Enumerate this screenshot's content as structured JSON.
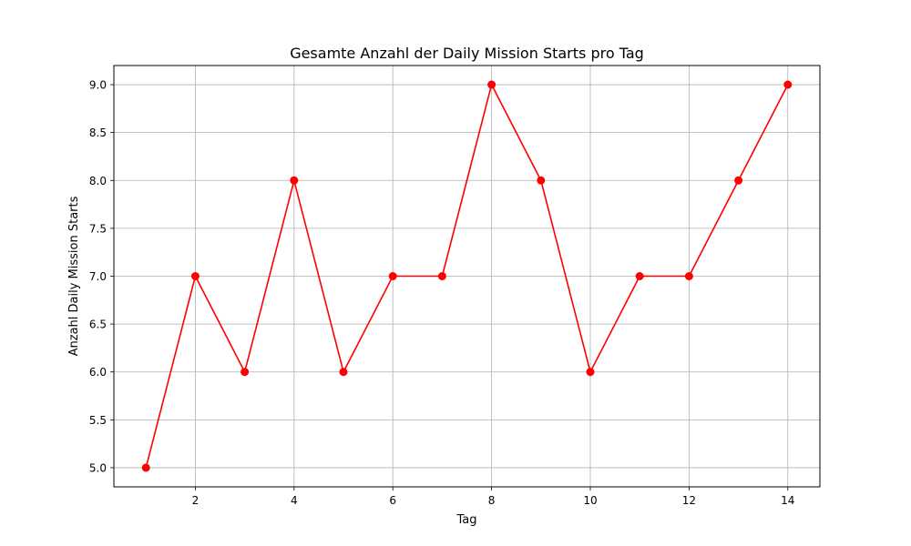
{
  "chart_data": {
    "type": "line",
    "title": "Gesamte Anzahl der Daily Mission Starts pro Tag",
    "xlabel": "Tag",
    "ylabel": "Anzahl Daily Mission Starts",
    "x": [
      1,
      2,
      3,
      4,
      5,
      6,
      7,
      8,
      9,
      10,
      11,
      12,
      13,
      14
    ],
    "series": [
      {
        "values": [
          5,
          7,
          6,
          8,
          6,
          7,
          7,
          9,
          8,
          6,
          7,
          7,
          8,
          9
        ]
      }
    ],
    "xlim": [
      0.35,
      14.65
    ],
    "ylim": [
      4.8,
      9.2
    ],
    "xticks": [
      2,
      4,
      6,
      8,
      10,
      12,
      14
    ],
    "xtick_labels": [
      "2",
      "4",
      "6",
      "8",
      "10",
      "12",
      "14"
    ],
    "yticks": [
      5.0,
      5.5,
      6.0,
      6.5,
      7.0,
      7.5,
      8.0,
      8.5,
      9.0
    ],
    "ytick_labels": [
      "5.0",
      "5.5",
      "6.0",
      "6.5",
      "7.0",
      "7.5",
      "8.0",
      "8.5",
      "9.0"
    ],
    "grid": true,
    "line_color": "#ff0000",
    "marker": "circle"
  }
}
